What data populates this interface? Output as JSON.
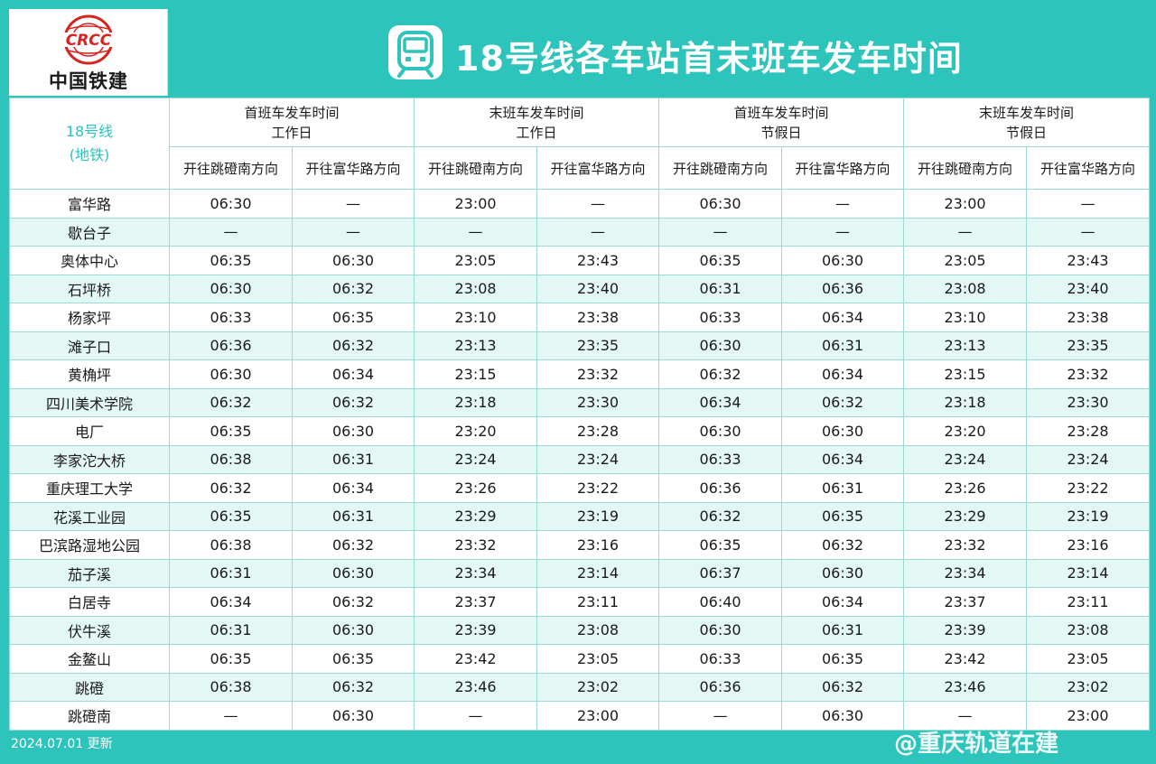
{
  "header": {
    "logo_name": "中国铁建",
    "logo_text": "CRCC",
    "title": "18号线各车站首末班车发车时间"
  },
  "table": {
    "line_label": "18号线",
    "line_sub": "(地铁)",
    "groups": [
      {
        "top": "首班车发车时间",
        "bottom": "工作日"
      },
      {
        "top": "末班车发车时间",
        "bottom": "工作日"
      },
      {
        "top": "首班车发车时间",
        "bottom": "节假日"
      },
      {
        "top": "末班车发车时间",
        "bottom": "节假日"
      }
    ],
    "directions": [
      "开往跳磴南方向",
      "开往富华路方向",
      "开往跳磴南方向",
      "开往富华路方向",
      "开往跳磴南方向",
      "开往富华路方向",
      "开往跳磴南方向",
      "开往富华路方向"
    ],
    "rows": [
      {
        "station": "富华路",
        "times": [
          "06:30",
          "—",
          "23:00",
          "—",
          "06:30",
          "—",
          "23:00",
          "—"
        ]
      },
      {
        "station": "歇台子",
        "times": [
          "—",
          "—",
          "—",
          "—",
          "—",
          "—",
          "—",
          "—"
        ]
      },
      {
        "station": "奥体中心",
        "times": [
          "06:35",
          "06:30",
          "23:05",
          "23:43",
          "06:35",
          "06:30",
          "23:05",
          "23:43"
        ]
      },
      {
        "station": "石坪桥",
        "times": [
          "06:30",
          "06:32",
          "23:08",
          "23:40",
          "06:31",
          "06:36",
          "23:08",
          "23:40"
        ]
      },
      {
        "station": "杨家坪",
        "times": [
          "06:33",
          "06:35",
          "23:10",
          "23:38",
          "06:33",
          "06:34",
          "23:10",
          "23:38"
        ]
      },
      {
        "station": "滩子口",
        "times": [
          "06:36",
          "06:32",
          "23:13",
          "23:35",
          "06:30",
          "06:31",
          "23:13",
          "23:35"
        ]
      },
      {
        "station": "黄桷坪",
        "times": [
          "06:30",
          "06:34",
          "23:15",
          "23:32",
          "06:32",
          "06:34",
          "23:15",
          "23:32"
        ]
      },
      {
        "station": "四川美术学院",
        "times": [
          "06:32",
          "06:32",
          "23:18",
          "23:30",
          "06:34",
          "06:32",
          "23:18",
          "23:30"
        ]
      },
      {
        "station": "电厂",
        "times": [
          "06:35",
          "06:30",
          "23:20",
          "23:28",
          "06:30",
          "06:30",
          "23:20",
          "23:28"
        ]
      },
      {
        "station": "李家沱大桥",
        "times": [
          "06:38",
          "06:31",
          "23:24",
          "23:24",
          "06:33",
          "06:34",
          "23:24",
          "23:24"
        ]
      },
      {
        "station": "重庆理工大学",
        "times": [
          "06:32",
          "06:34",
          "23:26",
          "23:22",
          "06:36",
          "06:31",
          "23:26",
          "23:22"
        ]
      },
      {
        "station": "花溪工业园",
        "times": [
          "06:35",
          "06:31",
          "23:29",
          "23:19",
          "06:32",
          "06:35",
          "23:29",
          "23:19"
        ]
      },
      {
        "station": "巴滨路湿地公园",
        "times": [
          "06:38",
          "06:32",
          "23:32",
          "23:16",
          "06:35",
          "06:32",
          "23:32",
          "23:16"
        ]
      },
      {
        "station": "茄子溪",
        "times": [
          "06:31",
          "06:30",
          "23:34",
          "23:14",
          "06:37",
          "06:30",
          "23:34",
          "23:14"
        ]
      },
      {
        "station": "白居寺",
        "times": [
          "06:34",
          "06:32",
          "23:37",
          "23:11",
          "06:40",
          "06:34",
          "23:37",
          "23:11"
        ]
      },
      {
        "station": "伏牛溪",
        "times": [
          "06:31",
          "06:30",
          "23:39",
          "23:08",
          "06:30",
          "06:31",
          "23:39",
          "23:08"
        ]
      },
      {
        "station": "金鳌山",
        "times": [
          "06:35",
          "06:35",
          "23:42",
          "23:05",
          "06:33",
          "06:35",
          "23:42",
          "23:05"
        ]
      },
      {
        "station": "跳磴",
        "times": [
          "06:38",
          "06:32",
          "23:46",
          "23:02",
          "06:36",
          "06:32",
          "23:46",
          "23:02"
        ]
      },
      {
        "station": "跳磴南",
        "times": [
          "—",
          "06:30",
          "—",
          "23:00",
          "—",
          "06:30",
          "—",
          "23:00"
        ]
      }
    ]
  },
  "footer": {
    "updated": "2024.07.01 更新",
    "watermark": "@重庆轨道在建"
  },
  "colors": {
    "accent": "#2cc4bb",
    "row_alt": "#e3f7f5",
    "logo_red": "#d7231f"
  }
}
